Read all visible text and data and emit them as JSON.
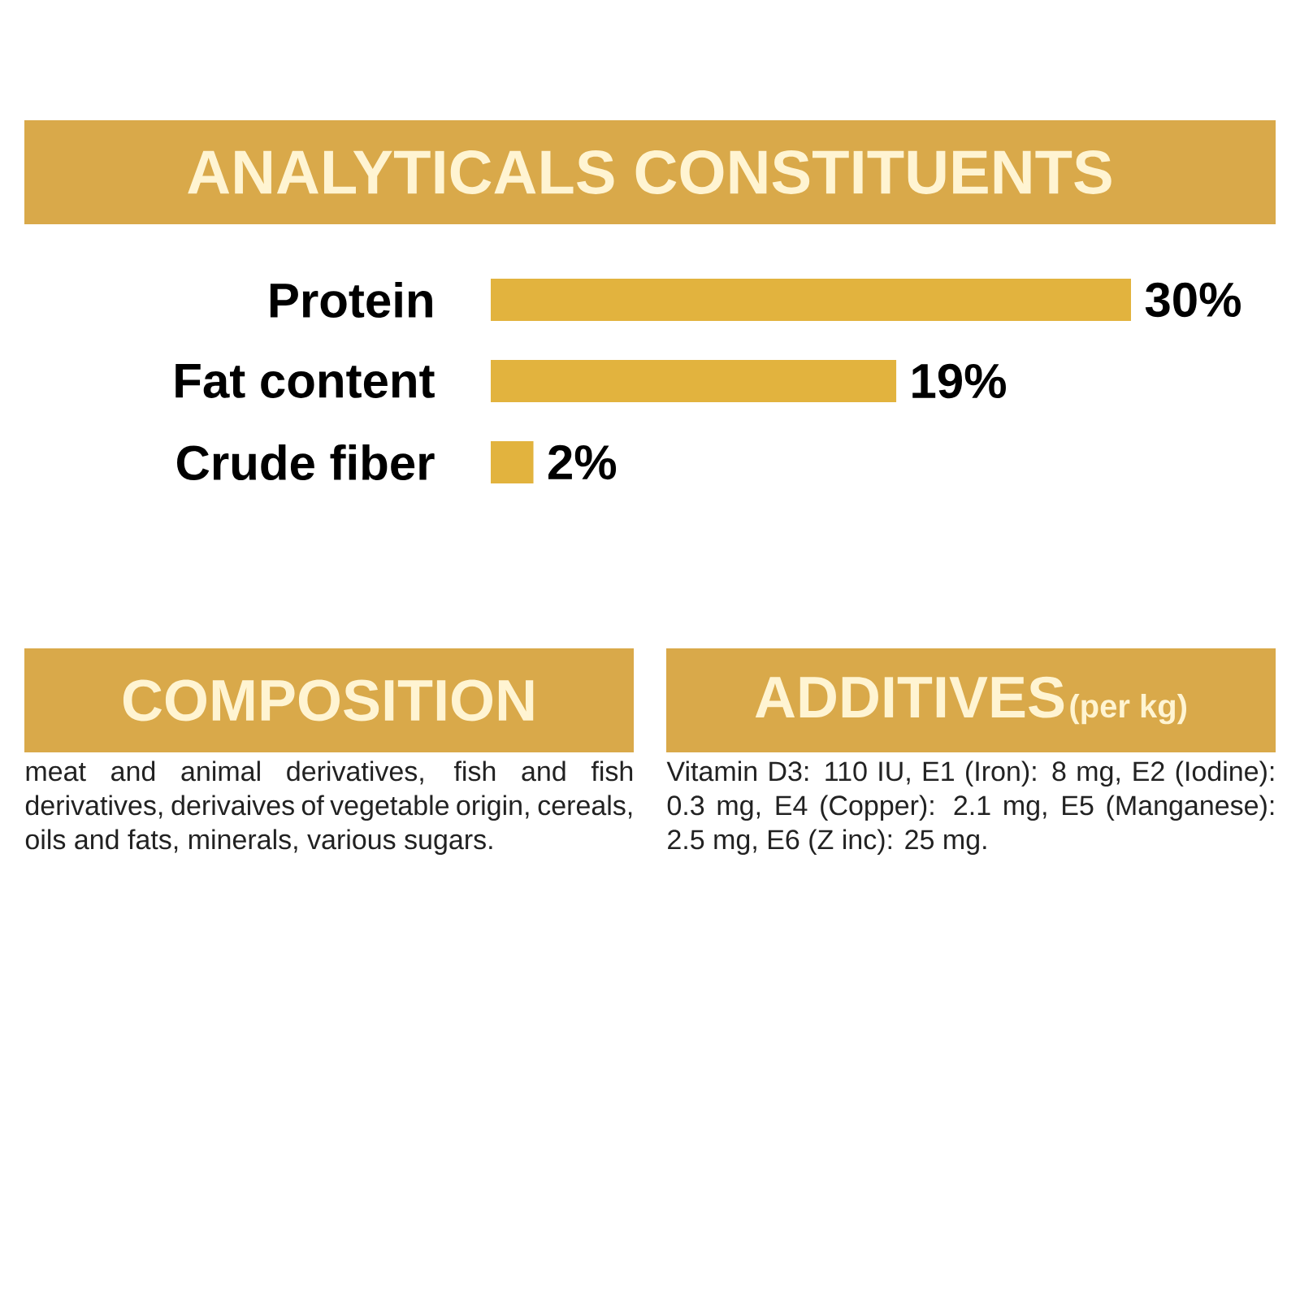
{
  "chart_data": [
    {
      "type": "bar",
      "orientation": "horizontal",
      "title": "ANALYTICALS CONSTITUENTS",
      "categories": [
        "Protein",
        "Fat content",
        "Crude fiber"
      ],
      "values": [
        30,
        19,
        2
      ],
      "value_labels": [
        "30%",
        "19%",
        "2%"
      ],
      "color": "#e2b33e"
    },
    {
      "type": "other",
      "title": "COMPOSITION",
      "annotations": [
        "meat and animal derivatives, fish and fish derivatives, derivaives of vegetable origin, cereals, oils and fats, minerals, various sugars."
      ]
    },
    {
      "type": "other",
      "title": "ADDITIVES",
      "subtitle": "(per kg)",
      "annotations": [
        "Vitamin D3: 110 IU, E1 (Iron): 8 mg, E2 (Iodine): 0.3 mg, E4 (Copper): 2.1 mg, E5 (Manganese): 2.5 mg, E6 (Z inc): 25 mg."
      ]
    }
  ]
}
